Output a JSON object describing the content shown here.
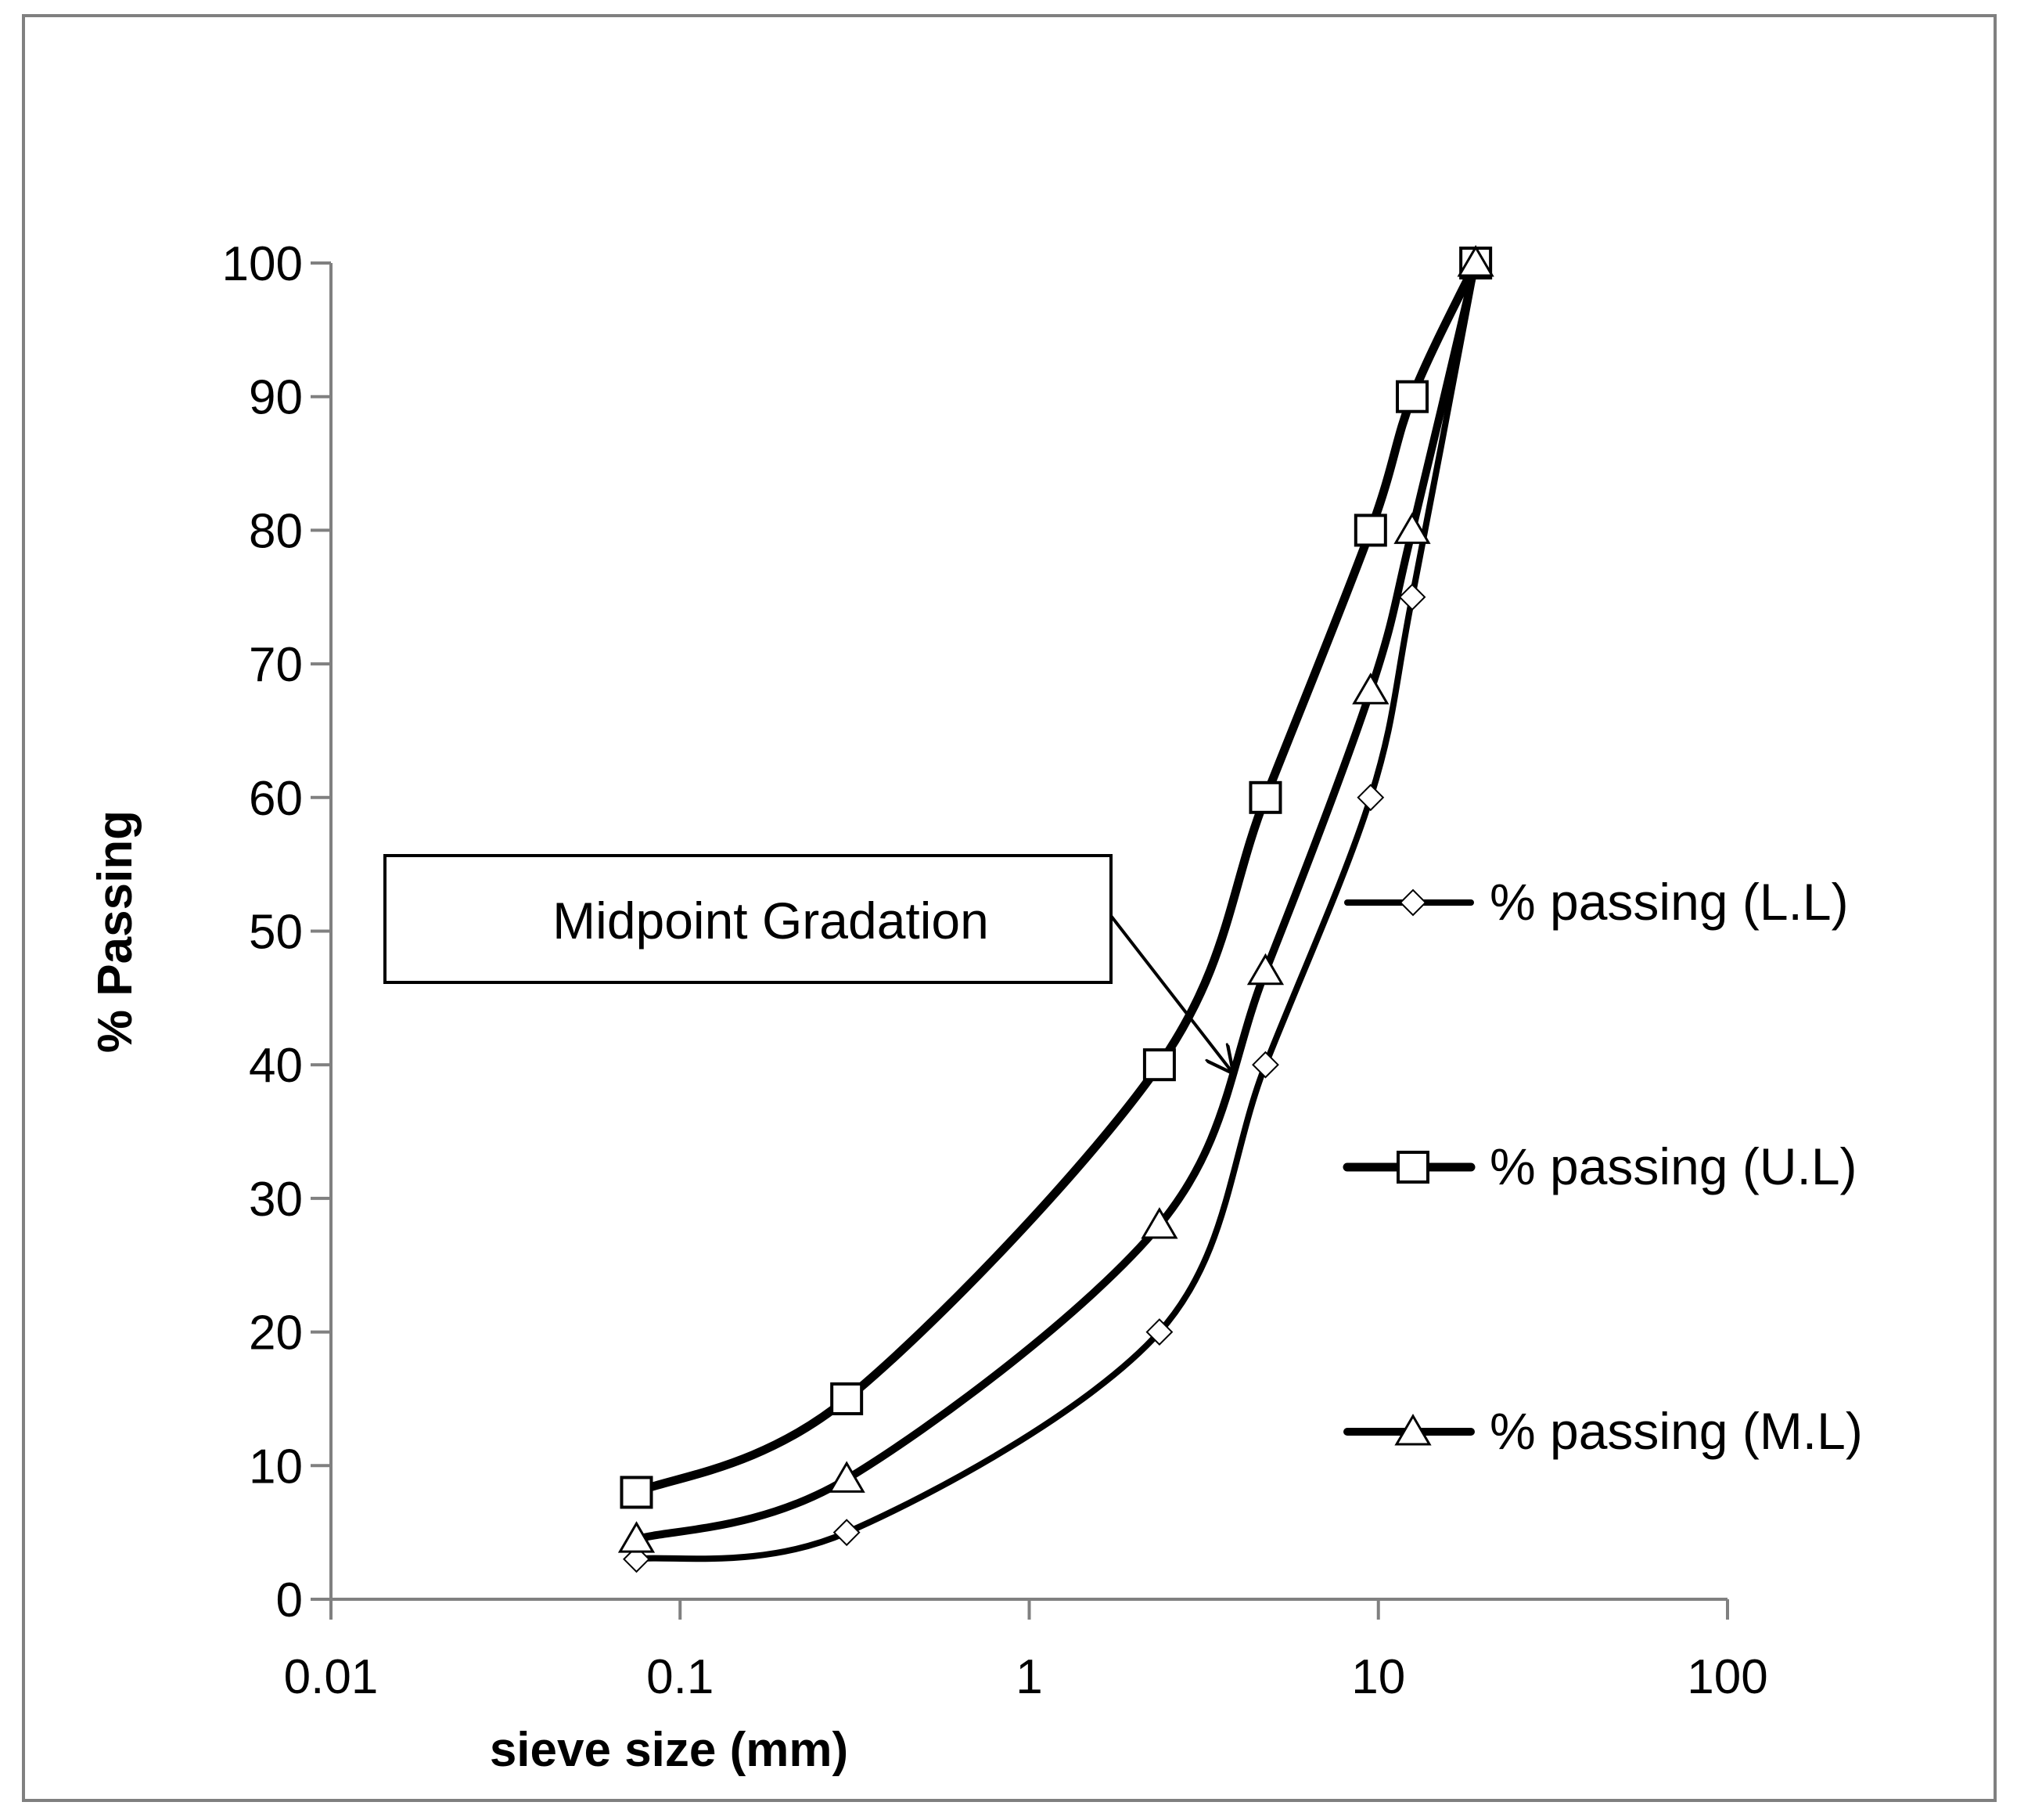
{
  "chart_data": {
    "type": "line",
    "title": "",
    "xlabel": "sieve size (mm)",
    "ylabel": "% Passing",
    "xscale": "log",
    "xlim": [
      0.01,
      100
    ],
    "ylim": [
      0,
      100
    ],
    "x_ticks": [
      0.01,
      0.1,
      1,
      10,
      100
    ],
    "x_tick_labels": [
      "0.01",
      "0.1",
      "1",
      "10",
      "100"
    ],
    "y_ticks": [
      0,
      10,
      20,
      30,
      40,
      50,
      60,
      70,
      80,
      90,
      100
    ],
    "y_tick_labels": [
      "0",
      "10",
      "20",
      "30",
      "40",
      "50",
      "60",
      "70",
      "80",
      "90",
      "100"
    ],
    "grid": false,
    "legend_position": "right",
    "series": [
      {
        "name": "% passing (L.L)",
        "marker": "diamond",
        "x": [
          0.075,
          0.3,
          2.36,
          4.75,
          9.5,
          12.5,
          19
        ],
        "y": [
          3,
          5,
          20,
          40,
          60,
          75,
          100
        ]
      },
      {
        "name": "% passing (U.L)",
        "marker": "square",
        "x": [
          0.075,
          0.3,
          2.36,
          4.75,
          9.5,
          12.5,
          19
        ],
        "y": [
          8,
          15,
          40,
          60,
          80,
          90,
          100
        ]
      },
      {
        "name": "% passing (M.L)",
        "marker": "triangle",
        "x": [
          0.075,
          0.3,
          2.36,
          4.75,
          9.5,
          12.5,
          19
        ],
        "y": [
          4.5,
          9,
          28,
          47,
          68,
          80,
          100
        ]
      }
    ],
    "annotation": {
      "text": "Midpoint Gradation",
      "points_to": {
        "x": 3.8,
        "y": 39.5
      }
    }
  },
  "colors": {
    "axis": "#808080",
    "series": "#000000",
    "background": "#ffffff"
  }
}
